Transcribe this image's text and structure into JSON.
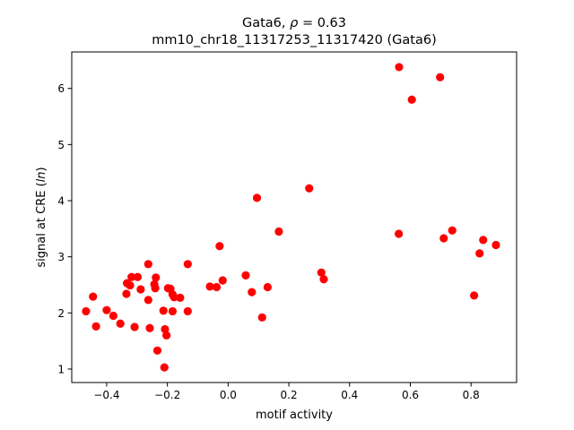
{
  "chart_data": {
    "type": "scatter",
    "title_main": "Gata6, ",
    "title_rho": "ρ",
    "title_eq": " = 0.63",
    "subtitle": "mm10_chr18_11317253_11317420 (Gata6)",
    "xlabel": "motif activity",
    "ylabel_pre": "signal at CRE (",
    "ylabel_ln": "ln",
    "ylabel_post": ")",
    "xlim": [
      -0.515,
      0.95
    ],
    "ylim": [
      0.76,
      6.65
    ],
    "xticks": [
      -0.4,
      -0.2,
      0.0,
      0.2,
      0.4,
      0.6,
      0.8
    ],
    "xtick_labels": [
      "−0.4",
      "−0.2",
      "0.0",
      "0.2",
      "0.4",
      "0.6",
      "0.8"
    ],
    "yticks": [
      1,
      2,
      3,
      4,
      5,
      6
    ],
    "ytick_labels": [
      "1",
      "2",
      "3",
      "4",
      "5",
      "6"
    ],
    "grid": false,
    "marker_color": "#ff0000",
    "points": [
      {
        "x": -0.468,
        "y": 2.03
      },
      {
        "x": -0.445,
        "y": 2.29
      },
      {
        "x": -0.435,
        "y": 1.76
      },
      {
        "x": -0.4,
        "y": 2.05
      },
      {
        "x": -0.378,
        "y": 1.95
      },
      {
        "x": -0.355,
        "y": 1.81
      },
      {
        "x": -0.335,
        "y": 2.34
      },
      {
        "x": -0.333,
        "y": 2.53
      },
      {
        "x": -0.323,
        "y": 2.49
      },
      {
        "x": -0.318,
        "y": 2.64
      },
      {
        "x": -0.308,
        "y": 1.75
      },
      {
        "x": -0.298,
        "y": 2.64
      },
      {
        "x": -0.288,
        "y": 2.42
      },
      {
        "x": -0.263,
        "y": 2.87
      },
      {
        "x": -0.263,
        "y": 2.23
      },
      {
        "x": -0.258,
        "y": 1.73
      },
      {
        "x": -0.243,
        "y": 2.51
      },
      {
        "x": -0.24,
        "y": 2.44
      },
      {
        "x": -0.238,
        "y": 2.63
      },
      {
        "x": -0.233,
        "y": 1.33
      },
      {
        "x": -0.213,
        "y": 2.04
      },
      {
        "x": -0.21,
        "y": 1.03
      },
      {
        "x": -0.208,
        "y": 1.71
      },
      {
        "x": -0.203,
        "y": 1.6
      },
      {
        "x": -0.198,
        "y": 2.44
      },
      {
        "x": -0.19,
        "y": 2.43
      },
      {
        "x": -0.183,
        "y": 2.33
      },
      {
        "x": -0.183,
        "y": 2.03
      },
      {
        "x": -0.178,
        "y": 2.28
      },
      {
        "x": -0.158,
        "y": 2.27
      },
      {
        "x": -0.133,
        "y": 2.87
      },
      {
        "x": -0.133,
        "y": 2.03
      },
      {
        "x": -0.06,
        "y": 2.47
      },
      {
        "x": -0.038,
        "y": 2.46
      },
      {
        "x": -0.028,
        "y": 3.19
      },
      {
        "x": -0.018,
        "y": 2.58
      },
      {
        "x": 0.058,
        "y": 2.67
      },
      {
        "x": 0.078,
        "y": 2.37
      },
      {
        "x": 0.095,
        "y": 4.05
      },
      {
        "x": 0.112,
        "y": 1.92
      },
      {
        "x": 0.13,
        "y": 2.46
      },
      {
        "x": 0.167,
        "y": 3.45
      },
      {
        "x": 0.267,
        "y": 4.22
      },
      {
        "x": 0.307,
        "y": 2.72
      },
      {
        "x": 0.315,
        "y": 2.6
      },
      {
        "x": 0.562,
        "y": 3.41
      },
      {
        "x": 0.563,
        "y": 6.38
      },
      {
        "x": 0.605,
        "y": 5.8
      },
      {
        "x": 0.698,
        "y": 6.2
      },
      {
        "x": 0.71,
        "y": 3.33
      },
      {
        "x": 0.738,
        "y": 3.47
      },
      {
        "x": 0.81,
        "y": 2.31
      },
      {
        "x": 0.828,
        "y": 3.06
      },
      {
        "x": 0.84,
        "y": 3.3
      },
      {
        "x": 0.882,
        "y": 3.21
      }
    ]
  }
}
